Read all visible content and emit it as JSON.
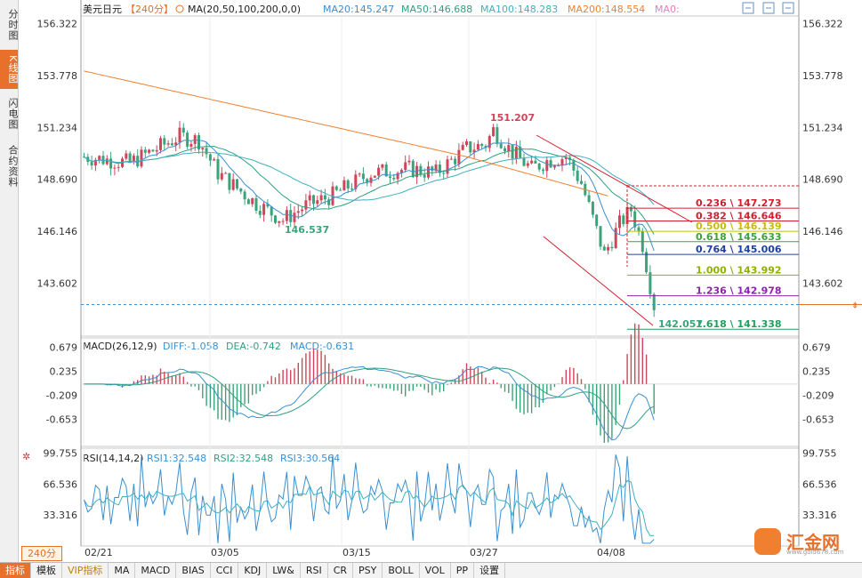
{
  "sidebar": {
    "tabs": [
      {
        "label": "分时图",
        "active": false
      },
      {
        "label": "K线图",
        "active": true
      },
      {
        "label": "闪电图",
        "active": false
      },
      {
        "label": "合约资料",
        "active": false
      }
    ]
  },
  "header": {
    "symbol": "美元日元",
    "period": "【240分】",
    "ma_title": "MA(20,50,100,200,0,0)",
    "ma20": "MA20:145.247",
    "ma50": "MA50:146.688",
    "ma100": "MA100:148.283",
    "ma200": "MA200:148.554",
    "ma0": "MA0:"
  },
  "macd_header": {
    "title": "MACD(26,12,9)",
    "diff": "DIFF:-1.058",
    "dea": "DEA:-0.742",
    "macd": "MACD:-0.631"
  },
  "rsi_header": {
    "title": "RSI(14,14,2)",
    "rsi1": "RSI1:32.548",
    "rsi2": "RSI2:32.548",
    "rsi3": "RSI3:30.564"
  },
  "period_button": "240分",
  "toolbar": {
    "items": [
      "指标",
      "模板",
      "VIP指标",
      "MA",
      "MACD",
      "BIAS",
      "CCI",
      "KDJ",
      "LW&",
      "RSI",
      "CR",
      "PSY",
      "BOLL",
      "VOL",
      "PP",
      "设置"
    ]
  },
  "logo": {
    "text": "汇金网",
    "url": "www.gold678.com"
  },
  "colors": {
    "up": "#d0455a",
    "down": "#3aa37a",
    "ma20": "#3a8fd0",
    "ma50": "#30a080",
    "ma100": "#40b0c0",
    "ma200": "#f08030",
    "accent": "#e8702a"
  },
  "chart_data": [
    {
      "type": "candlestick",
      "title": "美元日元【240分】",
      "y_ticks": [
        "156.322",
        "153.778",
        "151.234",
        "148.690",
        "146.146",
        "143.602"
      ],
      "ylim": [
        141.0,
        156.7
      ],
      "x_ticks": [
        "02/21",
        "03/05",
        "03/15",
        "03/27",
        "04/08"
      ],
      "series": [
        {
          "name": "MA20",
          "last": 145.247
        },
        {
          "name": "MA50",
          "last": 146.688
        },
        {
          "name": "MA100",
          "last": 148.283
        },
        {
          "name": "MA200",
          "last": 148.554
        }
      ],
      "annotations": [
        {
          "text": "151.207",
          "value": 151.207
        },
        {
          "text": "146.537",
          "value": 146.537
        },
        {
          "text": "142.057",
          "value": 142.057
        }
      ],
      "fibonacci": [
        {
          "label": "0.236 \\ 147.273",
          "value": 147.273,
          "color": "#d02030"
        },
        {
          "label": "0.382 \\ 146.646",
          "value": 146.646,
          "color": "#d02030"
        },
        {
          "label": "0.500 \\ 146.139",
          "value": 146.139,
          "color": "#c0c000"
        },
        {
          "label": "0.618 \\ 145.633",
          "value": 145.633,
          "color": "#40a040"
        },
        {
          "label": "0.764 \\ 145.006",
          "value": 145.006,
          "color": "#2040a0"
        },
        {
          "label": "1.000 \\ 143.992",
          "value": 143.992,
          "color": "#90b000"
        },
        {
          "label": "1.236 \\ 142.978",
          "value": 142.978,
          "color": "#9020b0"
        },
        {
          "label": "1.618 \\ 141.338",
          "value": 141.338,
          "color": "#20a060"
        }
      ],
      "current_price": 142.55
    },
    {
      "type": "bar",
      "title": "MACD(26,12,9)",
      "y_ticks": [
        "0.679",
        "0.235",
        "-0.209",
        "-0.653"
      ],
      "ylim": [
        -1.15,
        0.85
      ]
    },
    {
      "type": "line",
      "title": "RSI(14,14,2)",
      "y_ticks": [
        "99.755",
        "66.536",
        "33.316"
      ],
      "ylim": [
        0,
        105
      ]
    }
  ]
}
